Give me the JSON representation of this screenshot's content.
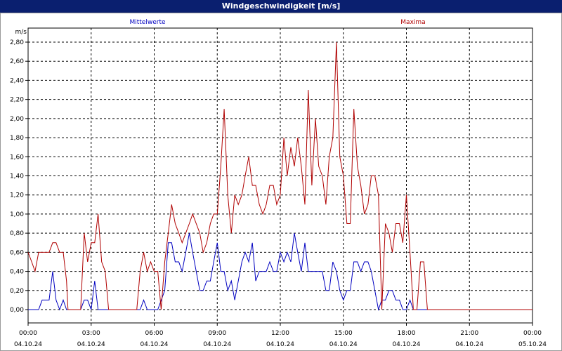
{
  "window": {
    "title": "Windgeschwindigkeit [m/s]"
  },
  "chart_data": {
    "type": "line",
    "title": "Windgeschwindigkeit [m/s]",
    "ylabel": "m/s",
    "ylim": [
      0,
      2.9
    ],
    "xlim_hours": [
      0,
      24
    ],
    "grid": true,
    "y_ticks": [
      "0,00",
      "0,20",
      "0,40",
      "0,60",
      "0,80",
      "1,00",
      "1,20",
      "1,40",
      "1,60",
      "1,80",
      "2,00",
      "2,20",
      "2,40",
      "2,60",
      "2,80"
    ],
    "x_ticks": [
      {
        "time": "00:00",
        "date": "04.10.24"
      },
      {
        "time": "03:00",
        "date": "04.10.24"
      },
      {
        "time": "06:00",
        "date": "04.10.24"
      },
      {
        "time": "09:00",
        "date": "04.10.24"
      },
      {
        "time": "12:00",
        "date": "04.10.24"
      },
      {
        "time": "15:00",
        "date": "04.10.24"
      },
      {
        "time": "18:00",
        "date": "04.10.24"
      },
      {
        "time": "21:00",
        "date": "04.10.24"
      },
      {
        "time": "00:00",
        "date": "05.10.24"
      }
    ],
    "series": [
      {
        "name": "Mittelwerte",
        "color": "#0000c0",
        "points": [
          [
            0,
            0
          ],
          [
            0.5,
            0
          ],
          [
            0.67,
            0.1
          ],
          [
            1,
            0.1
          ],
          [
            1.17,
            0.4
          ],
          [
            1.33,
            0.1
          ],
          [
            1.5,
            0
          ],
          [
            1.67,
            0.1
          ],
          [
            1.83,
            0
          ],
          [
            2.5,
            0
          ],
          [
            2.67,
            0.1
          ],
          [
            2.83,
            0.1
          ],
          [
            3,
            0
          ],
          [
            3.17,
            0.3
          ],
          [
            3.33,
            0
          ],
          [
            5.33,
            0
          ],
          [
            5.5,
            0.1
          ],
          [
            5.67,
            0
          ],
          [
            6,
            0
          ],
          [
            6.17,
            0
          ],
          [
            6.5,
            0.2
          ],
          [
            6.67,
            0.7
          ],
          [
            6.83,
            0.7
          ],
          [
            7,
            0.5
          ],
          [
            7.17,
            0.5
          ],
          [
            7.33,
            0.4
          ],
          [
            7.5,
            0.6
          ],
          [
            7.67,
            0.8
          ],
          [
            7.83,
            0.6
          ],
          [
            8,
            0.4
          ],
          [
            8.17,
            0.2
          ],
          [
            8.33,
            0.2
          ],
          [
            8.5,
            0.3
          ],
          [
            8.67,
            0.3
          ],
          [
            8.83,
            0.5
          ],
          [
            9,
            0.7
          ],
          [
            9.17,
            0.4
          ],
          [
            9.33,
            0.4
          ],
          [
            9.5,
            0.2
          ],
          [
            9.67,
            0.3
          ],
          [
            9.83,
            0.1
          ],
          [
            10,
            0.3
          ],
          [
            10.17,
            0.5
          ],
          [
            10.33,
            0.6
          ],
          [
            10.5,
            0.5
          ],
          [
            10.67,
            0.7
          ],
          [
            10.83,
            0.3
          ],
          [
            11,
            0.4
          ],
          [
            11.17,
            0.4
          ],
          [
            11.33,
            0.4
          ],
          [
            11.5,
            0.5
          ],
          [
            11.67,
            0.4
          ],
          [
            11.83,
            0.4
          ],
          [
            12,
            0.6
          ],
          [
            12.17,
            0.5
          ],
          [
            12.33,
            0.6
          ],
          [
            12.5,
            0.5
          ],
          [
            12.67,
            0.8
          ],
          [
            12.83,
            0.6
          ],
          [
            13,
            0.4
          ],
          [
            13.17,
            0.7
          ],
          [
            13.33,
            0.4
          ],
          [
            13.5,
            0.4
          ],
          [
            13.67,
            0.4
          ],
          [
            13.83,
            0.4
          ],
          [
            14,
            0.4
          ],
          [
            14.17,
            0.2
          ],
          [
            14.33,
            0.2
          ],
          [
            14.5,
            0.5
          ],
          [
            14.67,
            0.4
          ],
          [
            14.83,
            0.2
          ],
          [
            15,
            0.1
          ],
          [
            15.17,
            0.2
          ],
          [
            15.33,
            0.2
          ],
          [
            15.5,
            0.5
          ],
          [
            15.67,
            0.5
          ],
          [
            15.83,
            0.4
          ],
          [
            16,
            0.5
          ],
          [
            16.17,
            0.5
          ],
          [
            16.33,
            0.4
          ],
          [
            16.5,
            0.2
          ],
          [
            16.67,
            0
          ],
          [
            16.83,
            0.1
          ],
          [
            17,
            0.1
          ],
          [
            17.17,
            0.2
          ],
          [
            17.33,
            0.2
          ],
          [
            17.5,
            0.1
          ],
          [
            17.67,
            0.1
          ],
          [
            17.83,
            0
          ],
          [
            18,
            0
          ],
          [
            18.17,
            0.1
          ],
          [
            18.33,
            0
          ],
          [
            24,
            0
          ]
        ]
      },
      {
        "name": "Maxima",
        "color": "#b00000",
        "points": [
          [
            0,
            0.6
          ],
          [
            0.17,
            0.5
          ],
          [
            0.33,
            0.4
          ],
          [
            0.5,
            0.6
          ],
          [
            0.67,
            0.6
          ],
          [
            0.83,
            0.6
          ],
          [
            1,
            0.6
          ],
          [
            1.17,
            0.7
          ],
          [
            1.33,
            0.7
          ],
          [
            1.5,
            0.6
          ],
          [
            1.67,
            0.6
          ],
          [
            1.83,
            0.3
          ],
          [
            1.9,
            0
          ],
          [
            2.5,
            0
          ],
          [
            2.67,
            0.8
          ],
          [
            2.83,
            0.5
          ],
          [
            3,
            0.7
          ],
          [
            3.17,
            0.7
          ],
          [
            3.33,
            1.0
          ],
          [
            3.5,
            0.5
          ],
          [
            3.67,
            0.4
          ],
          [
            3.83,
            0
          ],
          [
            5.17,
            0
          ],
          [
            5.33,
            0.4
          ],
          [
            5.5,
            0.6
          ],
          [
            5.67,
            0.4
          ],
          [
            5.83,
            0.5
          ],
          [
            6,
            0.4
          ],
          [
            6.17,
            0.4
          ],
          [
            6.33,
            0
          ],
          [
            6.5,
            0.5
          ],
          [
            6.67,
            0.8
          ],
          [
            6.83,
            1.1
          ],
          [
            7,
            0.9
          ],
          [
            7.17,
            0.8
          ],
          [
            7.33,
            0.7
          ],
          [
            7.5,
            0.8
          ],
          [
            7.67,
            0.9
          ],
          [
            7.83,
            1.0
          ],
          [
            8,
            0.9
          ],
          [
            8.17,
            0.8
          ],
          [
            8.33,
            0.6
          ],
          [
            8.5,
            0.7
          ],
          [
            8.67,
            0.9
          ],
          [
            8.83,
            1.0
          ],
          [
            9,
            1.0
          ],
          [
            9.17,
            1.5
          ],
          [
            9.33,
            2.1
          ],
          [
            9.5,
            1.2
          ],
          [
            9.67,
            0.8
          ],
          [
            9.83,
            1.2
          ],
          [
            10,
            1.1
          ],
          [
            10.17,
            1.2
          ],
          [
            10.33,
            1.4
          ],
          [
            10.5,
            1.6
          ],
          [
            10.67,
            1.3
          ],
          [
            10.83,
            1.3
          ],
          [
            11,
            1.1
          ],
          [
            11.17,
            1.0
          ],
          [
            11.33,
            1.1
          ],
          [
            11.5,
            1.3
          ],
          [
            11.67,
            1.3
          ],
          [
            11.83,
            1.1
          ],
          [
            12,
            1.2
          ],
          [
            12.17,
            1.8
          ],
          [
            12.33,
            1.4
          ],
          [
            12.5,
            1.7
          ],
          [
            12.67,
            1.5
          ],
          [
            12.83,
            1.8
          ],
          [
            13,
            1.5
          ],
          [
            13.17,
            1.1
          ],
          [
            13.33,
            2.3
          ],
          [
            13.5,
            1.3
          ],
          [
            13.67,
            2.0
          ],
          [
            13.83,
            1.5
          ],
          [
            14,
            1.4
          ],
          [
            14.17,
            1.1
          ],
          [
            14.33,
            1.6
          ],
          [
            14.5,
            1.8
          ],
          [
            14.67,
            2.8
          ],
          [
            14.83,
            1.6
          ],
          [
            15,
            1.4
          ],
          [
            15.17,
            0.9
          ],
          [
            15.33,
            0.9
          ],
          [
            15.5,
            2.1
          ],
          [
            15.67,
            1.5
          ],
          [
            15.83,
            1.3
          ],
          [
            16,
            1.0
          ],
          [
            16.17,
            1.1
          ],
          [
            16.33,
            1.4
          ],
          [
            16.5,
            1.4
          ],
          [
            16.67,
            1.2
          ],
          [
            16.83,
            0
          ],
          [
            17,
            0.9
          ],
          [
            17.17,
            0.8
          ],
          [
            17.33,
            0.6
          ],
          [
            17.5,
            0.9
          ],
          [
            17.67,
            0.9
          ],
          [
            17.83,
            0.7
          ],
          [
            18,
            1.2
          ],
          [
            18.17,
            0.6
          ],
          [
            18.33,
            0
          ],
          [
            18.5,
            0
          ],
          [
            18.67,
            0.5
          ],
          [
            18.83,
            0.5
          ],
          [
            19,
            0
          ],
          [
            24,
            0
          ]
        ]
      }
    ]
  }
}
